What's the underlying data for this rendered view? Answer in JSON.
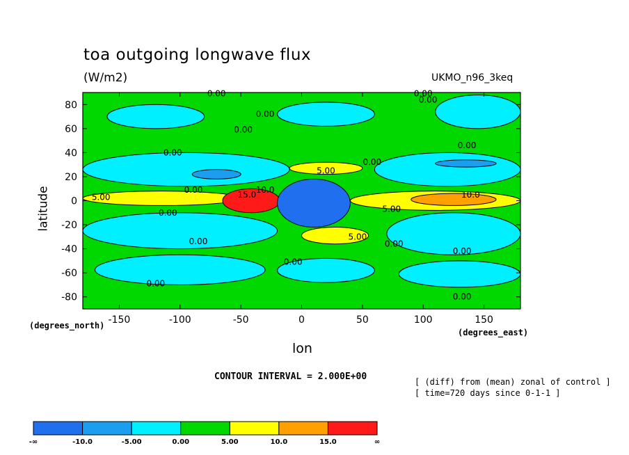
{
  "header": {
    "title": "toa outgoing longwave flux",
    "units": "(W/m2)",
    "model": "UKMO_n96_3keq"
  },
  "axes": {
    "xlabel": "lon",
    "ylabel": "latitude",
    "xunits_label": "(degrees_east)",
    "yunits_label": "(degrees_north)"
  },
  "footer": {
    "contour_interval": "CONTOUR INTERVAL = 2.000E+00",
    "note_line1": "[ (diff) from (mean) zonal of control ]",
    "note_line2": "[ time=720 days since 0-1-1 ]"
  },
  "colors": {
    "lt_-10": "#1f6fef",
    "-10_-5": "#1c9ef0",
    "-5_0": "#00f0ff",
    "0_5": "#00d800",
    "5_10": "#ffff00",
    "10_15": "#ffa000",
    "gt_15": "#ff1a1a"
  },
  "chart_data": {
    "type": "heatmap",
    "subtype": "filled-contour-map",
    "xlim": [
      -180,
      180
    ],
    "ylim": [
      -90,
      90
    ],
    "xticks": [
      -150,
      -100,
      -50,
      0,
      50,
      100,
      150
    ],
    "yticks": [
      -80,
      -60,
      -40,
      -20,
      0,
      20,
      40,
      60,
      80
    ],
    "contour_interval": 2.0,
    "colorbar": {
      "labels": [
        "-∞",
        "-10.0",
        "-5.00",
        "0.00",
        "5.00",
        "10.0",
        "15.0",
        "∞"
      ],
      "levels": [
        -10,
        -5,
        0,
        5,
        10,
        15
      ],
      "colors": [
        "#1f6fef",
        "#1c9ef0",
        "#00f0ff",
        "#00d800",
        "#ffff00",
        "#ffa000",
        "#ff1a1a"
      ]
    },
    "contour_labels": [
      {
        "text": "0.00",
        "lon": -70,
        "lat": 89
      },
      {
        "text": "0.00",
        "lon": 100,
        "lat": 89
      },
      {
        "text": "0.00",
        "lon": 104,
        "lat": 84
      },
      {
        "text": "0.00",
        "lon": -30,
        "lat": 72
      },
      {
        "text": "0.00",
        "lon": -48,
        "lat": 59
      },
      {
        "text": "0.00",
        "lon": -106,
        "lat": 40
      },
      {
        "text": "0.00",
        "lon": 136,
        "lat": 46
      },
      {
        "text": "0.00",
        "lon": 58,
        "lat": 32
      },
      {
        "text": "5.00",
        "lon": 20,
        "lat": 25
      },
      {
        "text": "0.00",
        "lon": -89,
        "lat": 9
      },
      {
        "text": "15.0",
        "lon": -45,
        "lat": 5
      },
      {
        "text": "10.0",
        "lon": -30,
        "lat": 9
      },
      {
        "text": "5.00",
        "lon": -165,
        "lat": 3
      },
      {
        "text": "10.0",
        "lon": 139,
        "lat": 5
      },
      {
        "text": "5.00",
        "lon": 74,
        "lat": -7
      },
      {
        "text": "0.00",
        "lon": -110,
        "lat": -10
      },
      {
        "text": "5.00",
        "lon": 46,
        "lat": -30
      },
      {
        "text": "0.00",
        "lon": -85,
        "lat": -34
      },
      {
        "text": "0.00",
        "lon": 76,
        "lat": -36
      },
      {
        "text": "0.00",
        "lon": 132,
        "lat": -42
      },
      {
        "text": "0.00",
        "lon": -7,
        "lat": -51
      },
      {
        "text": "0.00",
        "lon": -120,
        "lat": -69
      },
      {
        "text": "0.00",
        "lon": 132,
        "lat": -80
      }
    ],
    "regions": [
      {
        "level": "0_5",
        "lon": [
          -180,
          180
        ],
        "lat": [
          -90,
          90
        ]
      },
      {
        "level": "-5_0",
        "lon": [
          -160,
          -80
        ],
        "lat": [
          60,
          80
        ]
      },
      {
        "level": "-5_0",
        "lon": [
          -20,
          60
        ],
        "lat": [
          62,
          82
        ]
      },
      {
        "level": "-5_0",
        "lon": [
          110,
          180
        ],
        "lat": [
          60,
          88
        ]
      },
      {
        "level": "-5_0",
        "lon": [
          -180,
          -10
        ],
        "lat": [
          12,
          40
        ]
      },
      {
        "level": "-5_0",
        "lon": [
          60,
          180
        ],
        "lat": [
          12,
          40
        ]
      },
      {
        "level": "-5_0",
        "lon": [
          -180,
          -20
        ],
        "lat": [
          -40,
          -10
        ]
      },
      {
        "level": "-5_0",
        "lon": [
          70,
          180
        ],
        "lat": [
          -45,
          -10
        ]
      },
      {
        "level": "-5_0",
        "lon": [
          -170,
          -30
        ],
        "lat": [
          -70,
          -45
        ]
      },
      {
        "level": "-5_0",
        "lon": [
          -20,
          60
        ],
        "lat": [
          -68,
          -48
        ]
      },
      {
        "level": "-5_0",
        "lon": [
          80,
          180
        ],
        "lat": [
          -72,
          -50
        ]
      },
      {
        "level": "-10_-5",
        "lon": [
          -90,
          -50
        ],
        "lat": [
          18,
          26
        ]
      },
      {
        "level": "-10_-5",
        "lon": [
          110,
          160
        ],
        "lat": [
          28,
          34
        ]
      },
      {
        "level": "5_10",
        "lon": [
          -10,
          50
        ],
        "lat": [
          22,
          32
        ]
      },
      {
        "level": "5_10",
        "lon": [
          0,
          55
        ],
        "lat": [
          -36,
          -22
        ]
      },
      {
        "level": "5_10",
        "lon": [
          40,
          180
        ],
        "lat": [
          -8,
          8
        ]
      },
      {
        "level": "5_10",
        "lon": [
          -180,
          -50
        ],
        "lat": [
          -4,
          8
        ]
      },
      {
        "level": "10_15",
        "lon": [
          90,
          160
        ],
        "lat": [
          -4,
          6
        ]
      },
      {
        "level": "gt_15",
        "lon": [
          -65,
          -18
        ],
        "lat": [
          -10,
          10
        ]
      },
      {
        "level": "lt_-10",
        "lon": [
          -20,
          40
        ],
        "lat": [
          -22,
          18
        ]
      }
    ]
  }
}
